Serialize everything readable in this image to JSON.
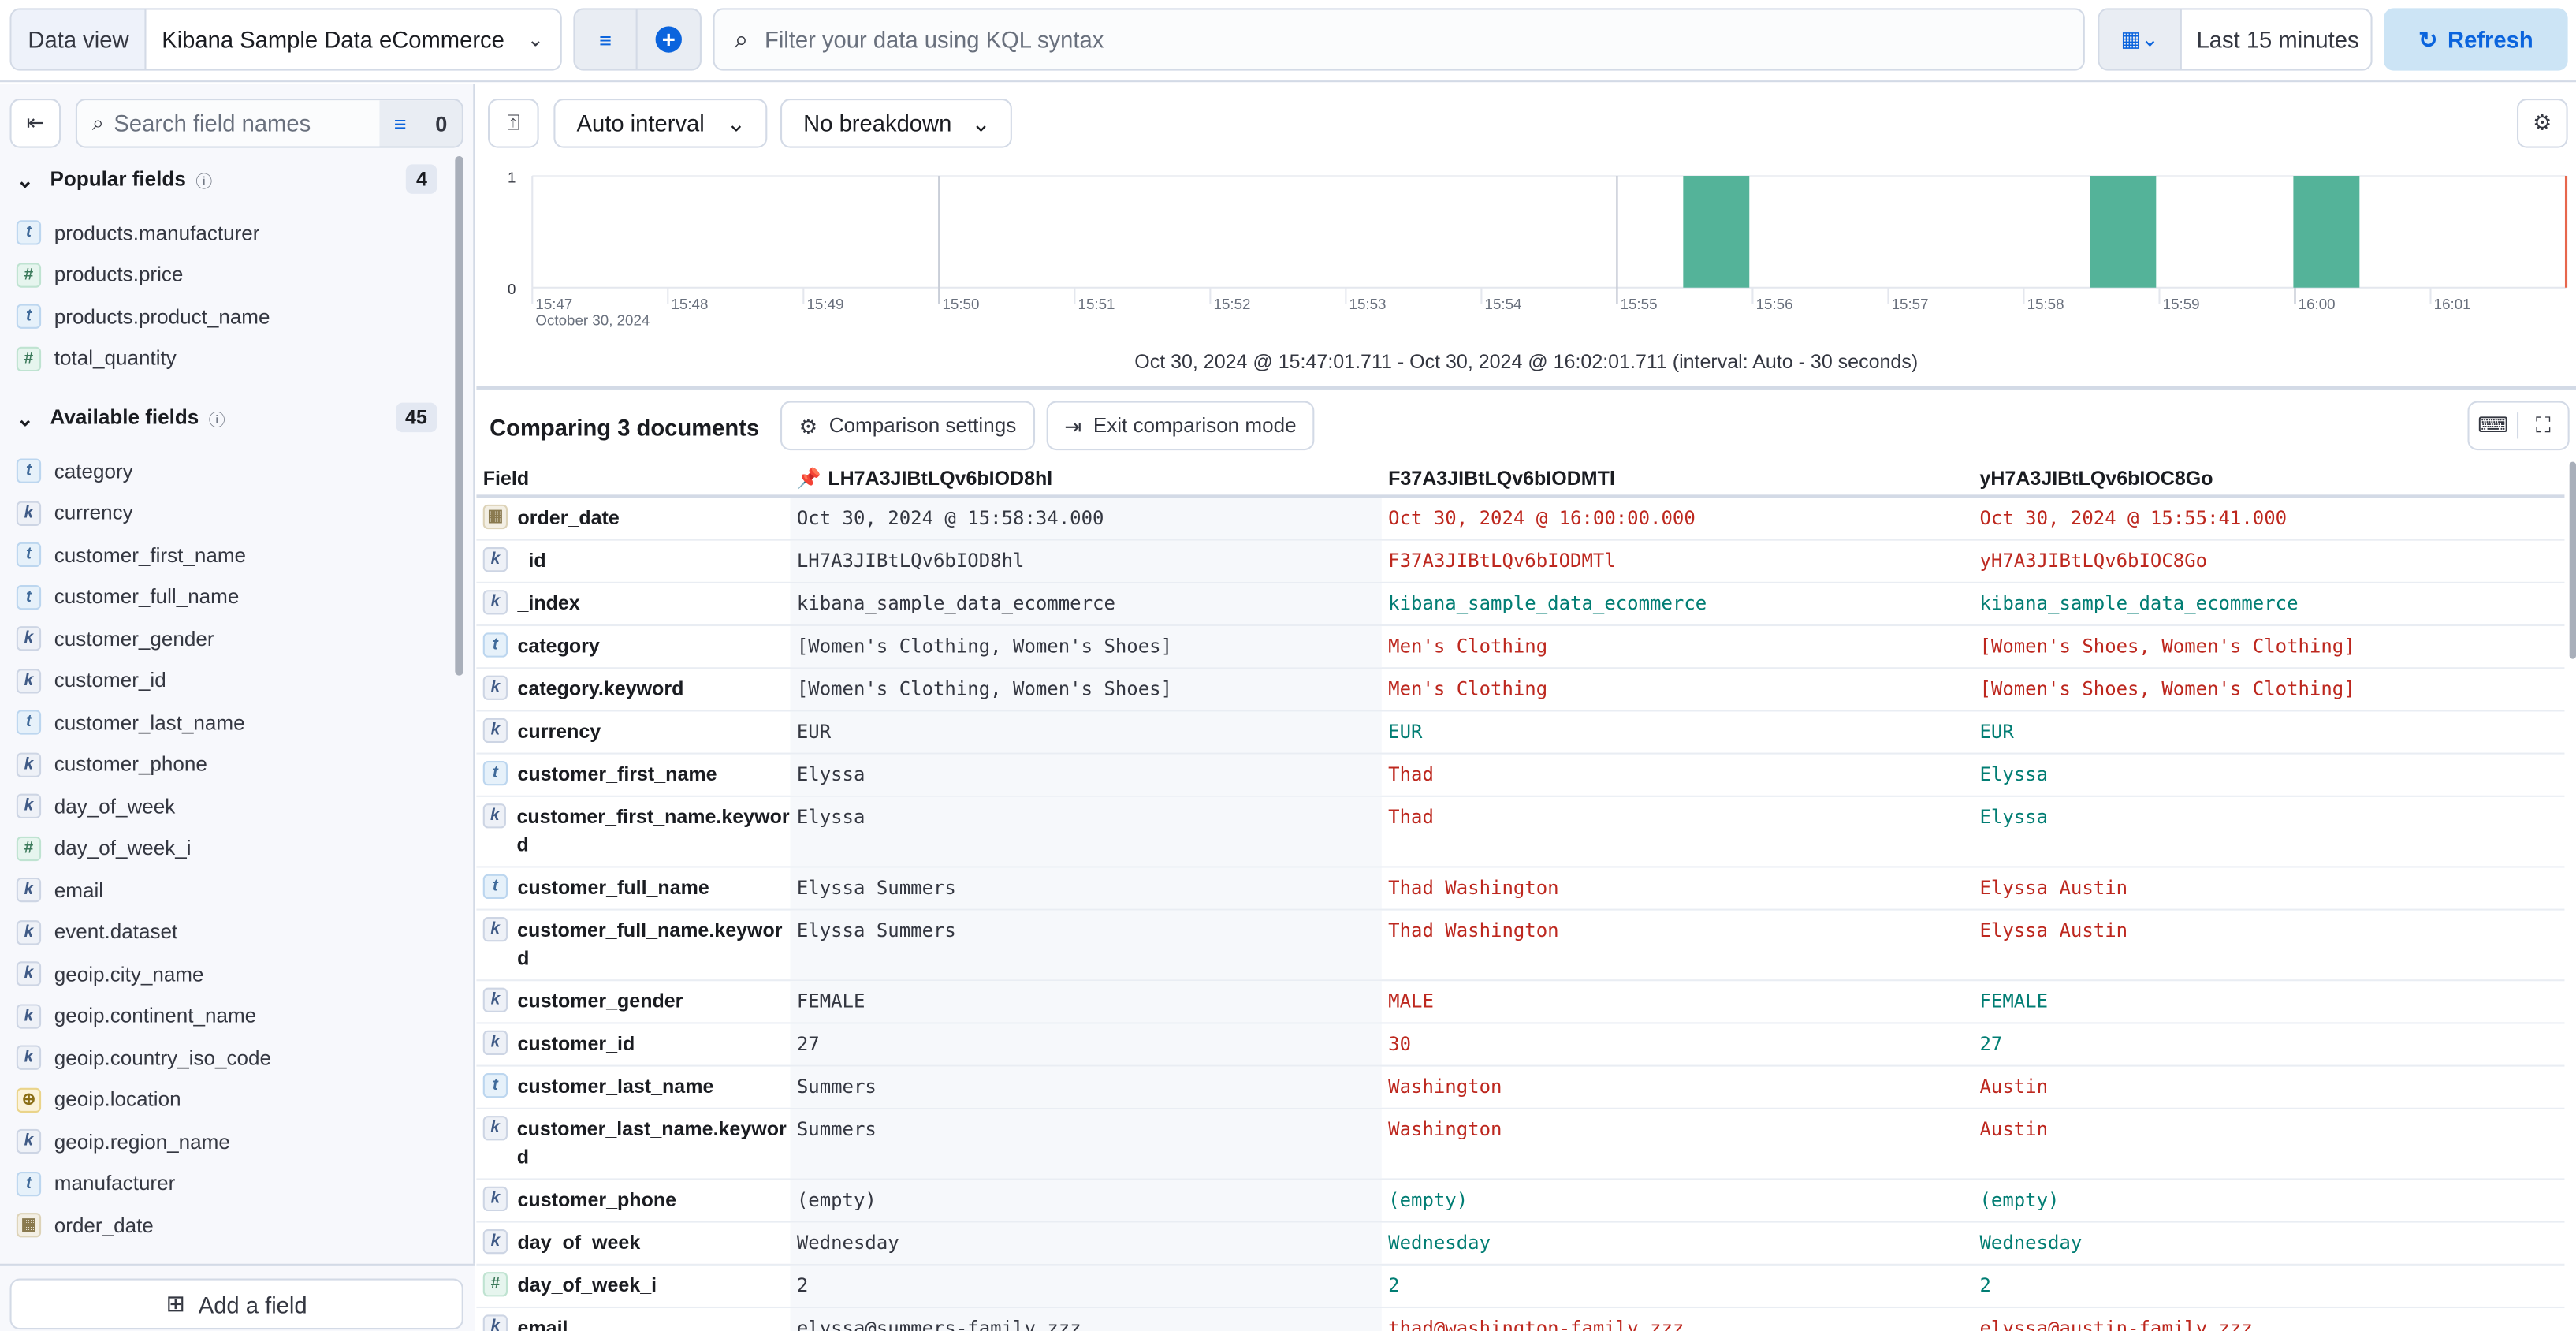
{
  "topbar": {
    "data_view_label": "Data view",
    "data_view_value": "Kibana Sample Data eCommerce",
    "query_placeholder": "Filter your data using KQL syntax",
    "time_range": "Last 15 minutes",
    "refresh_label": "Refresh"
  },
  "sidebar": {
    "search_placeholder": "Search field names",
    "filter_count": "0",
    "popular": {
      "title": "Popular fields",
      "count": "4",
      "items": [
        {
          "type": "t",
          "name": "products.manufacturer"
        },
        {
          "type": "#",
          "name": "products.price"
        },
        {
          "type": "t",
          "name": "products.product_name"
        },
        {
          "type": "#",
          "name": "total_quantity"
        }
      ]
    },
    "available": {
      "title": "Available fields",
      "count": "45",
      "items": [
        {
          "type": "t",
          "name": "category"
        },
        {
          "type": "k",
          "name": "currency"
        },
        {
          "type": "t",
          "name": "customer_first_name"
        },
        {
          "type": "t",
          "name": "customer_full_name"
        },
        {
          "type": "k",
          "name": "customer_gender"
        },
        {
          "type": "k",
          "name": "customer_id"
        },
        {
          "type": "t",
          "name": "customer_last_name"
        },
        {
          "type": "k",
          "name": "customer_phone"
        },
        {
          "type": "k",
          "name": "day_of_week"
        },
        {
          "type": "#",
          "name": "day_of_week_i"
        },
        {
          "type": "k",
          "name": "email"
        },
        {
          "type": "k",
          "name": "event.dataset"
        },
        {
          "type": "k",
          "name": "geoip.city_name"
        },
        {
          "type": "k",
          "name": "geoip.continent_name"
        },
        {
          "type": "k",
          "name": "geoip.country_iso_code"
        },
        {
          "type": "geo",
          "name": "geoip.location"
        },
        {
          "type": "k",
          "name": "geoip.region_name"
        },
        {
          "type": "t",
          "name": "manufacturer"
        },
        {
          "type": "date",
          "name": "order_date"
        }
      ]
    },
    "add_field_label": "Add a field"
  },
  "histogram": {
    "interval_label": "Auto interval",
    "breakdown_label": "No breakdown",
    "caption": "Oct 30, 2024 @ 15:47:01.711 - Oct 30, 2024 @ 16:02:01.711 (interval: Auto - 30 seconds)"
  },
  "chart_data": {
    "type": "bar",
    "x_ticks": [
      "15:47",
      "15:48",
      "15:49",
      "15:50",
      "15:51",
      "15:52",
      "15:53",
      "15:54",
      "15:55",
      "15:56",
      "15:57",
      "15:58",
      "15:59",
      "16:00",
      "16:01"
    ],
    "x_sublabel": "October 30, 2024",
    "y_ticks": [
      "0",
      "1"
    ],
    "ylim": [
      0,
      1
    ],
    "xlim": [
      "15:47",
      "16:02"
    ],
    "bars": [
      {
        "x": "15:55:30",
        "value": 1
      },
      {
        "x": "15:58:30",
        "value": 1
      },
      {
        "x": "16:00:00",
        "value": 1
      }
    ],
    "bar_color": "#54b399",
    "now_line_color": "#e7664c"
  },
  "comparison": {
    "title": "Comparing 3 documents",
    "settings_label": "Comparison settings",
    "exit_label": "Exit comparison mode",
    "field_header": "Field",
    "doc_headers": [
      "LH7A3JIBtLQv6bIOD8hl",
      "F37A3JIBtLQv6bIODMTl",
      "yH7A3JIBtLQv6bIOC8Go"
    ],
    "colors": {
      "same": "#017d73",
      "diff": "#bd271e"
    },
    "rows": [
      {
        "type": "date",
        "field": "order_date",
        "v": [
          "Oct 30, 2024 @ 15:58:34.000",
          "Oct 30, 2024 @ 16:00:00.000",
          "Oct 30, 2024 @ 15:55:41.000"
        ],
        "s": [
          "diff",
          "diff"
        ]
      },
      {
        "type": "k",
        "field": "_id",
        "v": [
          "LH7A3JIBtLQv6bIOD8hl",
          "F37A3JIBtLQv6bIODMTl",
          "yH7A3JIBtLQv6bIOC8Go"
        ],
        "s": [
          "diff",
          "diff"
        ]
      },
      {
        "type": "k",
        "field": "_index",
        "v": [
          "kibana_sample_data_ecommerce",
          "kibana_sample_data_ecommerce",
          "kibana_sample_data_ecommerce"
        ],
        "s": [
          "same",
          "same"
        ]
      },
      {
        "type": "t",
        "field": "category",
        "v": [
          "[Women's Clothing, Women's Shoes]",
          "Men's Clothing",
          "[Women's Shoes, Women's Clothing]"
        ],
        "s": [
          "diff",
          "diff"
        ]
      },
      {
        "type": "k",
        "field": "category.keyword",
        "v": [
          "[Women's Clothing, Women's Shoes]",
          "Men's Clothing",
          "[Women's Shoes, Women's Clothing]"
        ],
        "s": [
          "diff",
          "diff"
        ]
      },
      {
        "type": "k",
        "field": "currency",
        "v": [
          "EUR",
          "EUR",
          "EUR"
        ],
        "s": [
          "same",
          "same"
        ]
      },
      {
        "type": "t",
        "field": "customer_first_name",
        "v": [
          "Elyssa",
          "Thad",
          "Elyssa"
        ],
        "s": [
          "diff",
          "same"
        ]
      },
      {
        "type": "k",
        "field": "customer_first_name.keyword",
        "v": [
          "Elyssa",
          "Thad",
          "Elyssa"
        ],
        "s": [
          "diff",
          "same"
        ]
      },
      {
        "type": "t",
        "field": "customer_full_name",
        "v": [
          "Elyssa Summers",
          "Thad Washington",
          "Elyssa Austin"
        ],
        "s": [
          "diff",
          "diff"
        ]
      },
      {
        "type": "k",
        "field": "customer_full_name.keyword",
        "v": [
          "Elyssa Summers",
          "Thad Washington",
          "Elyssa Austin"
        ],
        "s": [
          "diff",
          "diff"
        ]
      },
      {
        "type": "k",
        "field": "customer_gender",
        "v": [
          "FEMALE",
          "MALE",
          "FEMALE"
        ],
        "s": [
          "diff",
          "same"
        ]
      },
      {
        "type": "k",
        "field": "customer_id",
        "v": [
          "27",
          "30",
          "27"
        ],
        "s": [
          "diff",
          "same"
        ]
      },
      {
        "type": "t",
        "field": "customer_last_name",
        "v": [
          "Summers",
          "Washington",
          "Austin"
        ],
        "s": [
          "diff",
          "diff"
        ]
      },
      {
        "type": "k",
        "field": "customer_last_name.keyword",
        "v": [
          "Summers",
          "Washington",
          "Austin"
        ],
        "s": [
          "diff",
          "diff"
        ]
      },
      {
        "type": "k",
        "field": "customer_phone",
        "v": [
          "(empty)",
          "(empty)",
          "(empty)"
        ],
        "s": [
          "same",
          "same"
        ]
      },
      {
        "type": "k",
        "field": "day_of_week",
        "v": [
          "Wednesday",
          "Wednesday",
          "Wednesday"
        ],
        "s": [
          "same",
          "same"
        ]
      },
      {
        "type": "#",
        "field": "day_of_week_i",
        "v": [
          "2",
          "2",
          "2"
        ],
        "s": [
          "same",
          "same"
        ]
      },
      {
        "type": "k",
        "field": "email",
        "v": [
          "elyssa@summers-family.zzz",
          "thad@washington-family.zzz",
          "elyssa@austin-family.zzz"
        ],
        "s": [
          "diff",
          "diff"
        ]
      }
    ]
  }
}
